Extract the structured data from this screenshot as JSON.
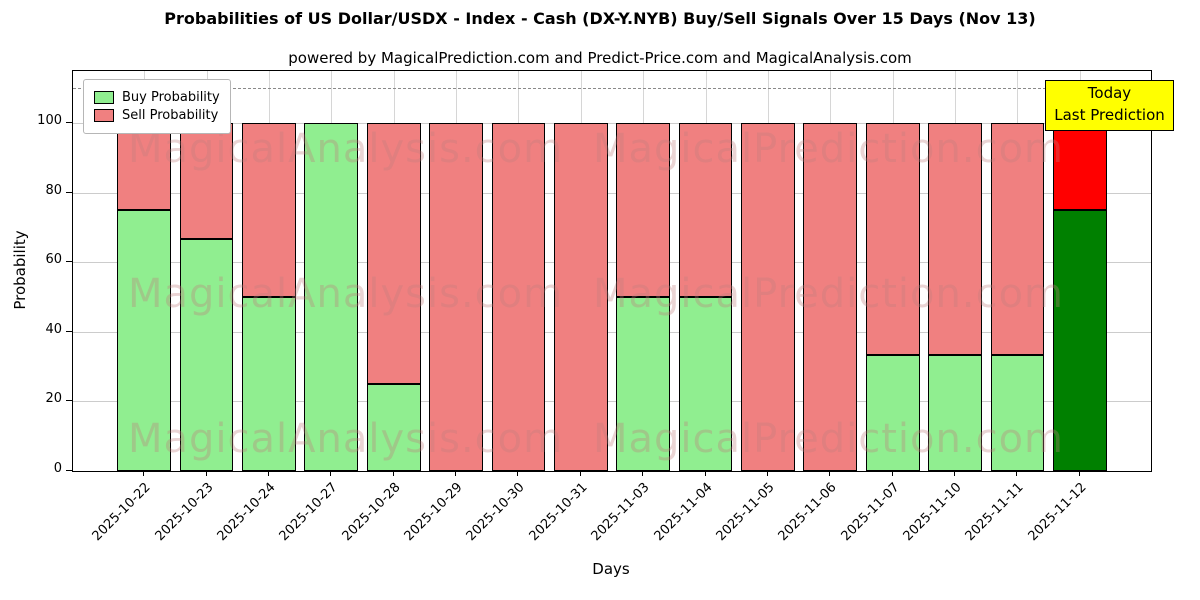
{
  "title": "Probabilities of US Dollar/USDX - Index - Cash (DX-Y.NYB) Buy/Sell Signals Over 15 Days (Nov 13)",
  "subtitle": "powered by MagicalPrediction.com and Predict-Price.com and MagicalAnalysis.com",
  "xlabel": "Days",
  "ylabel": "Probability",
  "legend": {
    "buy_label": "Buy Probability",
    "sell_label": "Sell Probability"
  },
  "today_box": {
    "line1": "Today",
    "line2": "Last Prediction",
    "bg": "#ffff00"
  },
  "watermarks": {
    "left": "MagicalAnalysis.com",
    "right": "MagicalPrediction.com"
  },
  "colors": {
    "buy": "#90ee90",
    "sell": "#f08080",
    "buy_today": "#008000",
    "sell_today": "#ff0000",
    "edge": "#000000",
    "grid": "#cccccc",
    "dashed": "#8a8a8a"
  },
  "chart_data": {
    "type": "bar",
    "stacked": true,
    "title": "Probabilities of US Dollar/USDX - Index - Cash (DX-Y.NYB) Buy/Sell Signals Over 15 Days (Nov 13)",
    "xlabel": "Days",
    "ylabel": "Probability",
    "ylim": [
      0,
      115
    ],
    "yticks": [
      0,
      20,
      40,
      60,
      80,
      100
    ],
    "dashed_line_y": 110,
    "grid": true,
    "legend_position": "upper left",
    "categories": [
      "2025-10-22",
      "2025-10-23",
      "2025-10-24",
      "2025-10-27",
      "2025-10-28",
      "2025-10-29",
      "2025-10-30",
      "2025-10-31",
      "2025-11-03",
      "2025-11-04",
      "2025-11-05",
      "2025-11-06",
      "2025-11-07",
      "2025-11-10",
      "2025-11-11",
      "2025-11-12"
    ],
    "series": [
      {
        "name": "Buy Probability",
        "values": [
          75,
          66.7,
          50,
          100,
          25,
          0,
          0,
          0,
          50,
          50,
          0,
          0,
          33.3,
          33.3,
          33.3,
          75
        ]
      },
      {
        "name": "Sell Probability",
        "values": [
          25,
          33.3,
          50,
          0,
          75,
          100,
          100,
          100,
          50,
          50,
          100,
          100,
          66.7,
          66.7,
          66.7,
          25
        ]
      }
    ],
    "today_index": 15,
    "annotation": "Today Last Prediction"
  }
}
